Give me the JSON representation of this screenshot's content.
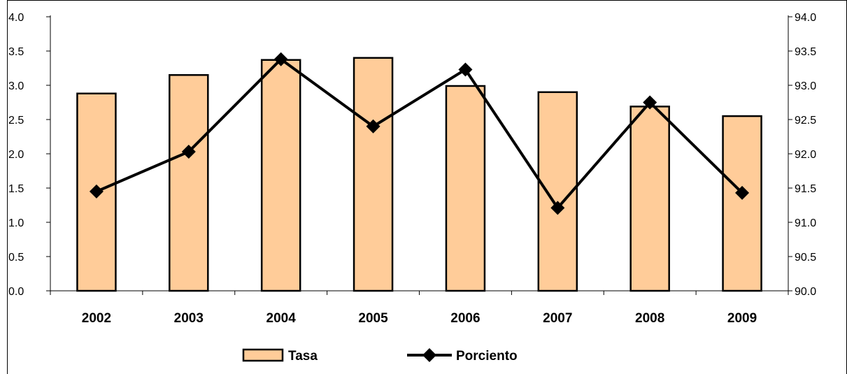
{
  "chart_data": {
    "type": "bar",
    "title": "",
    "xlabel": "",
    "ylabel": "",
    "categories": [
      "2002",
      "2003",
      "2004",
      "2005",
      "2006",
      "2007",
      "2008",
      "2009"
    ],
    "series": [
      {
        "name": "Tasa",
        "type": "bar",
        "axis": "left",
        "color": "#FFCC99",
        "values": [
          2.88,
          3.15,
          3.37,
          3.4,
          2.99,
          2.9,
          2.69,
          2.55
        ]
      },
      {
        "name": "Porciento",
        "type": "line",
        "axis": "right",
        "color": "#000000",
        "marker": "diamond",
        "values": [
          91.45,
          92.03,
          93.38,
          92.4,
          93.23,
          91.21,
          92.75,
          91.43
        ]
      }
    ],
    "y_left": {
      "min": 0,
      "max": 4,
      "step": 0.5,
      "tick_labels": [
        "0.0",
        "0.5",
        "1.0",
        "1.5",
        "2.0",
        "2.5",
        "3.0",
        "3.5",
        "4.0"
      ]
    },
    "y_right": {
      "min": 90,
      "max": 94,
      "step": 0.5,
      "tick_labels": [
        "90.0",
        "90.5",
        "91.0",
        "91.5",
        "92.0",
        "92.5",
        "93.0",
        "93.5",
        "94.0"
      ]
    },
    "grid": false,
    "legend_position": "bottom"
  }
}
